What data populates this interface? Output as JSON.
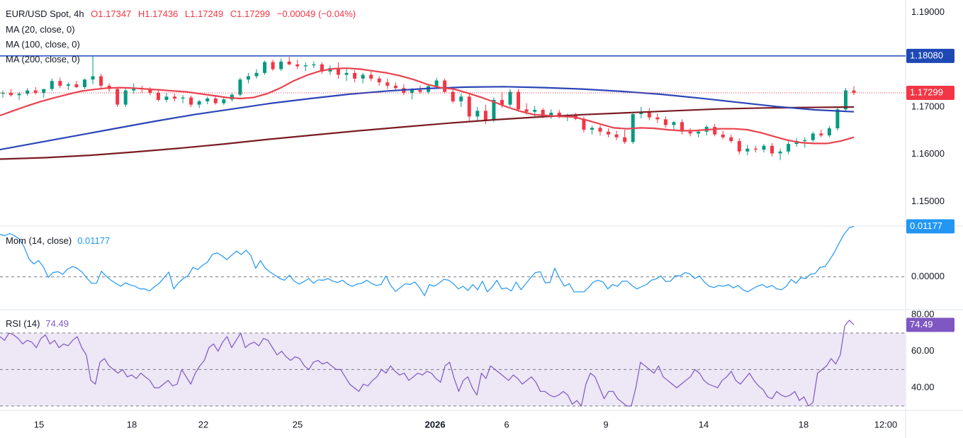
{
  "header": {
    "symbol": "EUR/USD Spot, 4h",
    "open": "O1.17347",
    "high": "H1.17436",
    "low": "L1.17249",
    "close": "C1.17299",
    "change": "−0.00049 (−0.04%)"
  },
  "legend": {
    "ma20": "MA (20, close, 0)",
    "ma100": "MA (100, close, 0)",
    "ma200": "MA (200, close, 0)",
    "mom": "Mom (14, close)",
    "mom_value": "0.01177",
    "rsi": "RSI (14)",
    "rsi_value": "74.49"
  },
  "colors": {
    "up": "#089981",
    "down": "#f23645",
    "ma20": "#e8434f",
    "ma100": "#2c45b8",
    "ma200": "#7a1c22",
    "resistance": "#1e48b4",
    "mom": "#2196f3",
    "rsi": "#7e57c2",
    "rsi_band": "#ede7f6"
  },
  "chart_data": [
    {
      "type": "candlestick",
      "title": "EUR/USD Spot, 4h",
      "ylim": [
        1.145,
        1.192
      ],
      "y_ticks": [
        "1.19000",
        "1.17000",
        "1.16000",
        "1.15000"
      ],
      "x_labels": [
        "15",
        "18",
        "22",
        "25",
        "2026",
        "6",
        "9",
        "14",
        "18",
        "12:00"
      ],
      "resistance_level": 1.1808,
      "resistance_label": "1.18080",
      "last_price": 1.17299,
      "last_price_label": "1.17299",
      "candles": [
        [
          1.1728,
          1.1735,
          1.172,
          1.173
        ],
        [
          1.173,
          1.1738,
          1.1722,
          1.1725
        ],
        [
          1.1725,
          1.1732,
          1.1715,
          1.1728
        ],
        [
          1.1728,
          1.174,
          1.1724,
          1.1735
        ],
        [
          1.1735,
          1.1742,
          1.1726,
          1.173
        ],
        [
          1.173,
          1.1738,
          1.172,
          1.1738
        ],
        [
          1.1738,
          1.176,
          1.1734,
          1.1755
        ],
        [
          1.1755,
          1.1762,
          1.174,
          1.1745
        ],
        [
          1.1745,
          1.1752,
          1.1736,
          1.1748
        ],
        [
          1.1748,
          1.1755,
          1.174,
          1.1742
        ],
        [
          1.1742,
          1.176,
          1.1738,
          1.1758
        ],
        [
          1.1758,
          1.1808,
          1.1748,
          1.1765
        ],
        [
          1.1765,
          1.177,
          1.174,
          1.1745
        ],
        [
          1.1745,
          1.175,
          1.1732,
          1.1738
        ],
        [
          1.1738,
          1.1742,
          1.17,
          1.1705
        ],
        [
          1.1705,
          1.1742,
          1.17,
          1.1735
        ],
        [
          1.1735,
          1.175,
          1.1728,
          1.174
        ],
        [
          1.174,
          1.1745,
          1.173,
          1.1738
        ],
        [
          1.1738,
          1.1742,
          1.1725,
          1.173
        ],
        [
          1.173,
          1.1738,
          1.1712,
          1.1715
        ],
        [
          1.1715,
          1.173,
          1.171,
          1.1722
        ],
        [
          1.1722,
          1.1728,
          1.1712,
          1.1718
        ],
        [
          1.1718,
          1.1725,
          1.1708,
          1.172
        ],
        [
          1.172,
          1.1724,
          1.17,
          1.1705
        ],
        [
          1.1705,
          1.1715,
          1.1698,
          1.1712
        ],
        [
          1.1712,
          1.1722,
          1.1706,
          1.1718
        ],
        [
          1.1718,
          1.1725,
          1.1705,
          1.1708
        ],
        [
          1.1708,
          1.172,
          1.1704,
          1.1716
        ],
        [
          1.1716,
          1.173,
          1.1712,
          1.1726
        ],
        [
          1.1726,
          1.1762,
          1.1722,
          1.1758
        ],
        [
          1.1758,
          1.1772,
          1.175,
          1.1765
        ],
        [
          1.1765,
          1.178,
          1.176,
          1.1772
        ],
        [
          1.1772,
          1.1798,
          1.1768,
          1.1795
        ],
        [
          1.1795,
          1.18,
          1.1776,
          1.178
        ],
        [
          1.178,
          1.1802,
          1.1776,
          1.1796
        ],
        [
          1.1796,
          1.1806,
          1.1788,
          1.179
        ],
        [
          1.179,
          1.18,
          1.178,
          1.1786
        ],
        [
          1.1786,
          1.1794,
          1.1776,
          1.1788
        ],
        [
          1.1788,
          1.1796,
          1.1782,
          1.179
        ],
        [
          1.179,
          1.1795,
          1.177,
          1.1775
        ],
        [
          1.1775,
          1.1788,
          1.1768,
          1.1782
        ],
        [
          1.1782,
          1.1794,
          1.176,
          1.1768
        ],
        [
          1.1768,
          1.178,
          1.1755,
          1.1772
        ],
        [
          1.1772,
          1.1778,
          1.1752,
          1.176
        ],
        [
          1.176,
          1.1772,
          1.175,
          1.1768
        ],
        [
          1.1768,
          1.1775,
          1.1755,
          1.176
        ],
        [
          1.176,
          1.1765,
          1.1745,
          1.1752
        ],
        [
          1.1752,
          1.176,
          1.1738,
          1.1745
        ],
        [
          1.1745,
          1.1752,
          1.1734,
          1.174
        ],
        [
          1.174,
          1.1748,
          1.1725,
          1.173
        ],
        [
          1.173,
          1.174,
          1.1716,
          1.1736
        ],
        [
          1.1736,
          1.1746,
          1.1728,
          1.1732
        ],
        [
          1.1732,
          1.1748,
          1.1728,
          1.1744
        ],
        [
          1.1744,
          1.1762,
          1.174,
          1.1756
        ],
        [
          1.1756,
          1.176,
          1.1728,
          1.1732
        ],
        [
          1.1732,
          1.174,
          1.1708,
          1.1712
        ],
        [
          1.1712,
          1.1728,
          1.17,
          1.1722
        ],
        [
          1.1722,
          1.173,
          1.167,
          1.168
        ],
        [
          1.168,
          1.17,
          1.167,
          1.1692
        ],
        [
          1.1692,
          1.1705,
          1.1664,
          1.1672
        ],
        [
          1.1672,
          1.172,
          1.1668,
          1.1715
        ],
        [
          1.1715,
          1.1732,
          1.1698,
          1.1705
        ],
        [
          1.1705,
          1.1738,
          1.17,
          1.1732
        ],
        [
          1.1732,
          1.1738,
          1.169,
          1.1695
        ],
        [
          1.1695,
          1.1708,
          1.1684,
          1.169
        ],
        [
          1.169,
          1.1702,
          1.168,
          1.1694
        ],
        [
          1.1694,
          1.1698,
          1.1676,
          1.168
        ],
        [
          1.168,
          1.1695,
          1.1675,
          1.1688
        ],
        [
          1.1688,
          1.1694,
          1.1676,
          1.168
        ],
        [
          1.168,
          1.1686,
          1.167,
          1.1682
        ],
        [
          1.1682,
          1.1688,
          1.1672,
          1.1675
        ],
        [
          1.1675,
          1.168,
          1.1646,
          1.1652
        ],
        [
          1.1652,
          1.166,
          1.1642,
          1.1656
        ],
        [
          1.1656,
          1.1662,
          1.164,
          1.1648
        ],
        [
          1.1648,
          1.1655,
          1.1636,
          1.1642
        ],
        [
          1.1642,
          1.165,
          1.163,
          1.1636
        ],
        [
          1.1636,
          1.1652,
          1.1622,
          1.1626
        ],
        [
          1.1626,
          1.169,
          1.1622,
          1.1685
        ],
        [
          1.1685,
          1.17,
          1.1676,
          1.169
        ],
        [
          1.169,
          1.1698,
          1.1672,
          1.1678
        ],
        [
          1.1678,
          1.1686,
          1.1666,
          1.1674
        ],
        [
          1.1674,
          1.168,
          1.1656,
          1.1662
        ],
        [
          1.1662,
          1.167,
          1.165,
          1.1668
        ],
        [
          1.1668,
          1.1674,
          1.1642,
          1.1648
        ],
        [
          1.1648,
          1.1655,
          1.1638,
          1.1644
        ],
        [
          1.1644,
          1.165,
          1.1636,
          1.1648
        ],
        [
          1.1648,
          1.1662,
          1.164,
          1.1658
        ],
        [
          1.1658,
          1.1664,
          1.1638,
          1.1642
        ],
        [
          1.1642,
          1.165,
          1.1632,
          1.1636
        ],
        [
          1.1636,
          1.1642,
          1.1624,
          1.1628
        ],
        [
          1.1628,
          1.1634,
          1.16,
          1.1606
        ],
        [
          1.1606,
          1.162,
          1.1598,
          1.1612
        ],
        [
          1.1612,
          1.1618,
          1.1604,
          1.161
        ],
        [
          1.161,
          1.1622,
          1.1604,
          1.1618
        ],
        [
          1.1618,
          1.1624,
          1.1596,
          1.1602
        ],
        [
          1.1602,
          1.1612,
          1.1588,
          1.1606
        ],
        [
          1.1606,
          1.1628,
          1.16,
          1.1622
        ],
        [
          1.1622,
          1.1634,
          1.1616,
          1.1628
        ],
        [
          1.1628,
          1.1636,
          1.1614,
          1.163
        ],
        [
          1.163,
          1.1648,
          1.1626,
          1.1644
        ],
        [
          1.1644,
          1.1652,
          1.1636,
          1.164
        ],
        [
          1.164,
          1.166,
          1.1636,
          1.1655
        ],
        [
          1.1655,
          1.17,
          1.165,
          1.1695
        ],
        [
          1.1695,
          1.174,
          1.169,
          1.1735
        ],
        [
          1.1735,
          1.1744,
          1.1725,
          1.173
        ]
      ],
      "ma20": [
        1.1682,
        1.1692,
        1.1702,
        1.1711,
        1.1719,
        1.1726,
        1.1733,
        1.1737,
        1.174,
        1.1741,
        1.174,
        1.1738,
        1.1736,
        1.1734,
        1.1732,
        1.1728,
        1.1724,
        1.172,
        1.1718,
        1.172,
        1.1728,
        1.174,
        1.1755,
        1.1767,
        1.1776,
        1.1781,
        1.1782,
        1.178,
        1.1776,
        1.1772,
        1.1766,
        1.1758,
        1.1748,
        1.1741,
        1.1738,
        1.173,
        1.1721,
        1.1711,
        1.17,
        1.1691,
        1.1684,
        1.1682,
        1.168,
        1.1679,
        1.1672,
        1.1664,
        1.1656,
        1.1654,
        1.1656,
        1.1655,
        1.1652,
        1.165,
        1.165,
        1.1652,
        1.1654,
        1.1654,
        1.1652,
        1.1646,
        1.1638,
        1.163,
        1.1625,
        1.1623,
        1.1623,
        1.1628,
        1.1636
      ],
      "ma100": [
        1.161,
        1.1625,
        1.164,
        1.1655,
        1.167,
        1.1684,
        1.1696,
        1.1708,
        1.1718,
        1.1727,
        1.1734,
        1.1739,
        1.1742,
        1.1743,
        1.1741,
        1.1738,
        1.1733,
        1.1727,
        1.1719,
        1.171,
        1.1701,
        1.1694,
        1.169
      ],
      "ma200": [
        1.159,
        1.1593,
        1.1598,
        1.1605,
        1.1613,
        1.1622,
        1.1632,
        1.1641,
        1.165,
        1.1658,
        1.1666,
        1.1673,
        1.1679,
        1.1684,
        1.1688,
        1.1692,
        1.1696,
        1.1698,
        1.1699,
        1.17
      ]
    },
    {
      "type": "line",
      "title": "Mom (14, close)",
      "ylim": [
        -0.0075,
        0.0115
      ],
      "y_ticks": [
        "0.00000"
      ],
      "last_value": 0.01177,
      "last_label": "0.01177",
      "values": [
        0.0099,
        0.0096,
        0.0101,
        0.0096,
        0.0088,
        0.007,
        0.0042,
        0.003,
        0.0038,
        0.0023,
        -0.0001,
        0.001,
        0.0012,
        0.0006,
        0.0018,
        0.0024,
        0.002,
        0.0011,
        -0.0003,
        -0.0015,
        -0.0015,
        0.0013,
        0.0002,
        -0.0008,
        -0.0015,
        -0.0022,
        -0.0014,
        -0.0019,
        -0.0022,
        -0.0028,
        -0.0028,
        -0.0033,
        -0.0023,
        -0.0015,
        -0.0002,
        0.0011,
        -0.0028,
        -0.0014,
        -0.0004,
        0.0003,
        0.0022,
        0.0017,
        0.0027,
        0.0034,
        0.0052,
        0.0056,
        0.0049,
        0.004,
        0.005,
        0.006,
        0.0052,
        0.0062,
        0.005,
        0.002,
        0.0038,
        0.002,
        0.0011,
        0.0004,
        -0.0004,
        -0.0008,
        0.0004,
        -0.001,
        -0.0017,
        -0.0011,
        -0.0004,
        -0.0015,
        -0.0007,
        -0.0008,
        -0.0004,
        -0.001,
        -0.0013,
        -0.0008,
        -0.0017,
        -0.0022,
        -0.0017,
        -0.0015,
        -0.0008,
        -0.0015,
        -0.002,
        -0.0018,
        0.0002,
        -0.002,
        -0.0034,
        -0.0025,
        -0.0016,
        -0.0018,
        -0.0012,
        -0.0026,
        -0.0044,
        -0.0018,
        -0.0022,
        -0.0015,
        -0.0006,
        -0.0008,
        -0.0016,
        -0.0028,
        -0.0022,
        -0.0032,
        -0.0018,
        -0.003,
        -0.001,
        -0.0035,
        -0.0024,
        -0.0008,
        -0.0028,
        -0.0026,
        -0.0033,
        -0.0012,
        -0.003,
        -0.0016,
        -0.0002,
        0.001,
        0.0012,
        -0.0014,
        -0.0013,
        0.002,
        -0.0003,
        -0.0022,
        -0.0016,
        -0.0035,
        -0.0035,
        -0.0035,
        -0.0025,
        -0.0012,
        -0.0008,
        -0.0012,
        -0.0028,
        -0.0018,
        -0.0022,
        -0.001,
        -0.001,
        -0.002,
        -0.0028,
        -0.0023,
        -0.0018,
        -0.0008,
        -0.0005,
        0.0002,
        -0.0011,
        -0.001,
        0.0003,
        0.0002,
        0.001,
        0.0007,
        -0.0004,
        0.0002,
        -0.0012,
        -0.0022,
        -0.0025,
        -0.002,
        -0.0022,
        -0.0018,
        -0.0026,
        -0.002,
        -0.003,
        -0.0035,
        -0.0028,
        -0.0022,
        -0.0018,
        -0.0025,
        -0.002,
        -0.0028,
        -0.003,
        -0.0022,
        -0.0006,
        -0.0015,
        -0.0002,
        -0.0004,
        0.0006,
        0.0008,
        0.0022,
        0.0024,
        0.004,
        0.0058,
        0.008,
        0.01,
        0.0114,
        0.0118
      ]
    },
    {
      "type": "line",
      "title": "RSI (14)",
      "ylim": [
        28,
        82
      ],
      "y_ticks": [
        "80.00",
        "60.00",
        "40.00"
      ],
      "bands": [
        70,
        50,
        30
      ],
      "last_value": 74.49,
      "last_label": "74.49",
      "values": [
        68,
        66,
        70,
        69,
        67,
        64,
        66,
        65,
        62,
        67,
        69,
        64,
        66,
        62,
        64,
        63,
        66,
        68,
        62,
        58,
        44,
        42,
        54,
        56,
        52,
        50,
        48,
        50,
        46,
        47,
        45,
        48,
        46,
        44,
        40,
        40,
        42,
        44,
        41,
        42,
        50,
        46,
        42,
        48,
        52,
        55,
        62,
        64,
        60,
        65,
        68,
        62,
        66,
        70,
        62,
        64,
        65,
        63,
        67,
        66,
        62,
        58,
        60,
        57,
        55,
        57,
        56,
        52,
        50,
        54,
        55,
        53,
        54,
        52,
        50,
        50,
        46,
        42,
        40,
        38,
        42,
        41,
        44,
        46,
        50,
        48,
        52,
        49,
        47,
        48,
        44,
        46,
        48,
        47,
        49,
        48,
        45,
        43,
        52,
        54,
        45,
        38,
        44,
        46,
        40,
        36,
        48,
        45,
        52,
        50,
        48,
        46,
        44,
        47,
        45,
        42,
        44,
        46,
        43,
        38,
        38,
        36,
        35,
        36,
        38,
        36,
        31,
        33,
        30,
        42,
        48,
        46,
        40,
        34,
        38,
        38,
        34,
        32,
        30,
        30,
        40,
        54,
        52,
        50,
        48,
        52,
        46,
        44,
        42,
        40,
        42,
        44,
        46,
        50,
        48,
        44,
        42,
        41,
        40,
        44,
        46,
        49,
        44,
        42,
        45,
        48,
        44,
        41,
        39,
        35,
        34,
        38,
        36,
        35,
        36,
        38,
        33,
        35,
        30,
        32,
        48,
        50,
        52,
        56,
        53,
        58,
        74,
        77,
        74.49
      ]
    }
  ]
}
